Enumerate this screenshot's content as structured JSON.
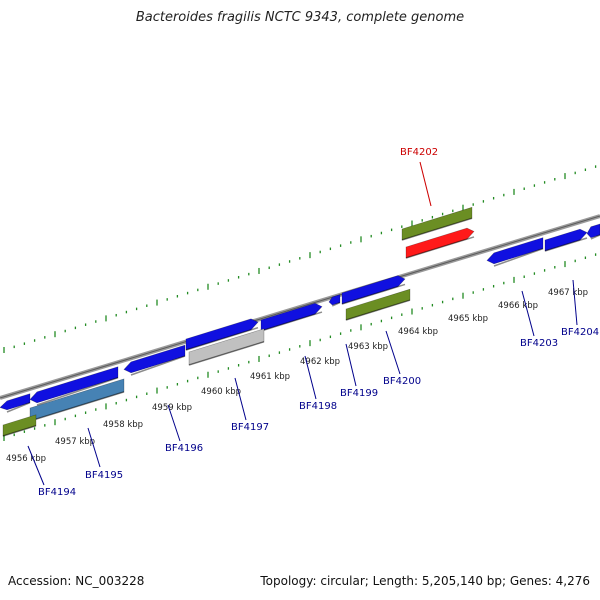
{
  "title": "Bacteroides fragilis NCTC 9343, complete genome",
  "footer": {
    "accession": "Accession: NC_003228",
    "summary": "Topology: circular; Length: 5,205,140 bp; Genes: 4,276"
  },
  "colors": {
    "forward_gene": "#1010e0",
    "rna_gene": "#6b8e23",
    "highlight_gene": "#ff1a1a",
    "pseudo_gene": "#c0c0c0",
    "steel_gene": "#4682b4",
    "backbone": "#808080",
    "tick": "#228b22",
    "label_normal": "#00008b",
    "label_highlight": "#cc0000"
  },
  "kbp_labels": [
    "4956 kbp",
    "4957 kbp",
    "4958 kbp",
    "4959 kbp",
    "4960 kbp",
    "4961 kbp",
    "4962 kbp",
    "4963 kbp",
    "4964 kbp",
    "4965 kbp",
    "4966 kbp",
    "4967 kbp"
  ],
  "gene_labels": [
    {
      "id": "BF4194",
      "highlight": false
    },
    {
      "id": "BF4195",
      "highlight": false
    },
    {
      "id": "BF4196",
      "highlight": false
    },
    {
      "id": "BF4197",
      "highlight": false
    },
    {
      "id": "BF4198",
      "highlight": false
    },
    {
      "id": "BF4199",
      "highlight": false
    },
    {
      "id": "BF4200",
      "highlight": false
    },
    {
      "id": "BF4202",
      "highlight": true
    },
    {
      "id": "BF4203",
      "highlight": false
    },
    {
      "id": "BF4204",
      "highlight": false
    }
  ]
}
